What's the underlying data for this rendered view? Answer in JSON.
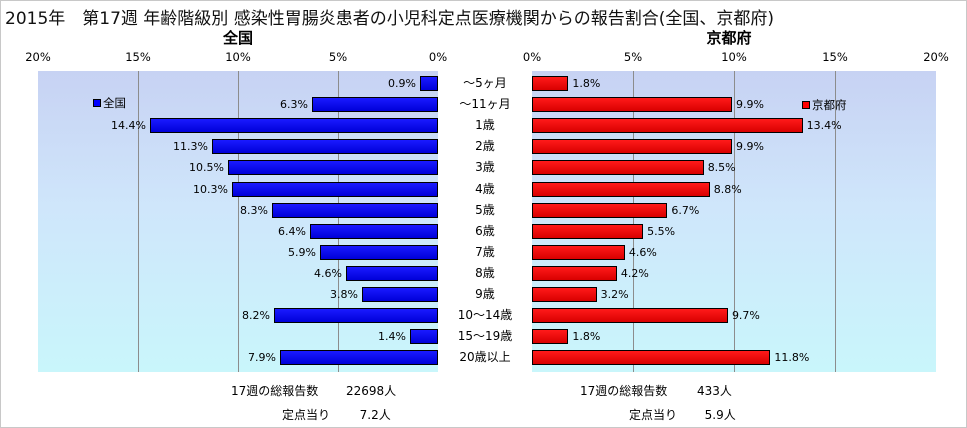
{
  "title": "2015年　第17週 年齢階級別 感染性胃腸炎患者の小児科定点医療機関からの報告割合(全国、京都府)",
  "chart_data": {
    "type": "bar",
    "orientation": "horizontal",
    "layout": "population-pyramid",
    "categories": [
      "～5ヶ月",
      "～11ヶ月",
      "1歳",
      "2歳",
      "3歳",
      "4歳",
      "5歳",
      "6歳",
      "7歳",
      "8歳",
      "9歳",
      "10～14歳",
      "15～19歳",
      "20歳以上"
    ],
    "panels": [
      {
        "heading": "全国",
        "direction": "left",
        "axis_ticks": [
          "20%",
          "15%",
          "10%",
          "5%",
          "0%"
        ],
        "xlim": [
          0,
          20
        ],
        "series": [
          {
            "name": "全国",
            "color": "#0000ff",
            "values": [
              0.9,
              6.3,
              14.4,
              11.3,
              10.5,
              10.3,
              8.3,
              6.4,
              5.9,
              4.6,
              3.8,
              8.2,
              1.4,
              7.9
            ],
            "labels": [
              "0.9%",
              "6.3%",
              "14.4%",
              "11.3%",
              "10.5%",
              "10.3%",
              "8.3%",
              "6.4%",
              "5.9%",
              "4.6%",
              "3.8%",
              "8.2%",
              "1.4%",
              "7.9%"
            ]
          }
        ],
        "legend": {
          "label": "全国",
          "position": "top-left"
        }
      },
      {
        "heading": "京都府",
        "direction": "right",
        "axis_ticks": [
          "0%",
          "5%",
          "10%",
          "15%",
          "20%"
        ],
        "xlim": [
          0,
          20
        ],
        "series": [
          {
            "name": "京都府",
            "color": "#ff0000",
            "values": [
              1.8,
              9.9,
              13.4,
              9.9,
              8.5,
              8.8,
              6.7,
              5.5,
              4.6,
              4.2,
              3.2,
              9.7,
              1.8,
              11.8
            ],
            "labels": [
              "1.8%",
              "9.9%",
              "13.4%",
              "9.9%",
              "8.5%",
              "8.8%",
              "6.7%",
              "5.5%",
              "4.6%",
              "4.2%",
              "3.2%",
              "9.7%",
              "1.8%",
              "11.8%"
            ]
          }
        ],
        "legend": {
          "label": "京都府",
          "position": "top-right"
        }
      }
    ],
    "grid": true
  },
  "footer": {
    "national": {
      "total_label": "17週の総報告数",
      "total_value": "22698人",
      "per_label": "定点当り",
      "per_value": "7.2人"
    },
    "kyoto": {
      "total_label": "17週の総報告数",
      "total_value": "433人",
      "per_label": "定点当り",
      "per_value": "5.9人"
    }
  }
}
